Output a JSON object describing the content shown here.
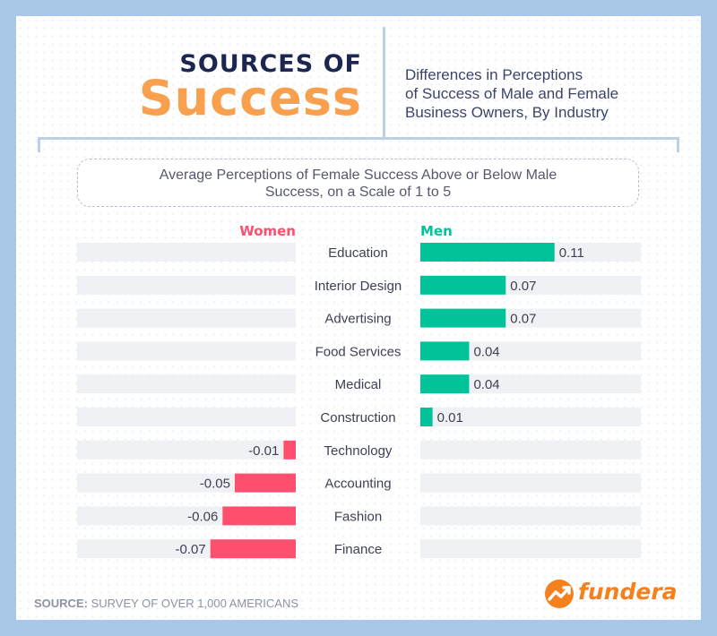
{
  "header": {
    "title_line1": "SOURCES OF",
    "title_line2": "Success",
    "subtitle_lines": [
      "Differences in Perceptions",
      "of Success of Male and Female",
      "Business Owners, By Industry"
    ]
  },
  "chart_data": {
    "type": "bar",
    "orientation": "diverging-horizontal",
    "title_lines": [
      "Average Perceptions of Female Success Above or Below Male",
      "Success, on a Scale of 1 to 5"
    ],
    "left_label": "Women",
    "right_label": "Men",
    "categories": [
      "Education",
      "Interior Design",
      "Advertising",
      "Food Services",
      "Medical",
      "Construction",
      "Technology",
      "Accounting",
      "Fashion",
      "Finance"
    ],
    "values": [
      0.11,
      0.07,
      0.07,
      0.04,
      0.04,
      0.01,
      -0.01,
      -0.05,
      -0.06,
      -0.07
    ],
    "value_labels": [
      "0.11",
      "0.07",
      "0.07",
      "0.04",
      "0.04",
      "0.01",
      "-0.01",
      "-0.05",
      "-0.06",
      "-0.07"
    ],
    "xlim": [
      -0.18,
      0.18
    ],
    "colors": {
      "positive": "#00c39a",
      "negative": "#ff4f6e",
      "track": "#eff1f4"
    }
  },
  "footer": {
    "source_label": "SOURCE:",
    "source_text": "SURVEY OF OVER 1,000 AMERICANS",
    "logo_text": "fundera",
    "logo_icon": "fundera-chart-icon",
    "logo_color": "#f4801f"
  }
}
